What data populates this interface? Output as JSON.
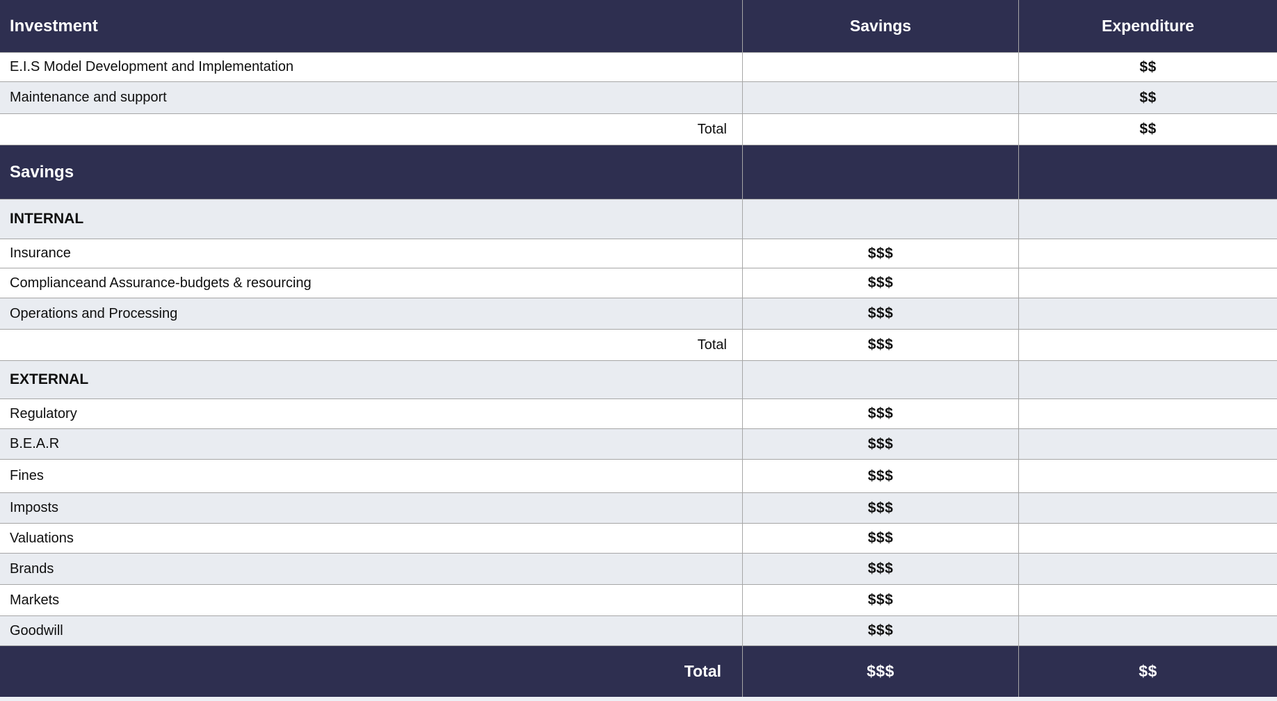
{
  "colors": {
    "dark_header_bg": "#2e2f50",
    "stripe_row_bg": "#e9ecf1",
    "row_border": "#a6a6a6",
    "bottom_strip_bg": "#edf0f5",
    "text": "#0f0f0f",
    "header_text": "#ffffff"
  },
  "table": {
    "columns": [
      {
        "label": "Investment"
      },
      {
        "label": "Savings"
      },
      {
        "label": "Expenditure"
      }
    ],
    "rows": [
      {
        "type": "data",
        "bg": "white",
        "label": "E.I.S Model Development and Implementation",
        "savings": "",
        "expenditure": "$$"
      },
      {
        "type": "data",
        "bg": "gray",
        "label": "Maintenance and support",
        "savings": "",
        "expenditure": "$$"
      },
      {
        "type": "total",
        "bg": "white",
        "label": "Total",
        "savings": "",
        "expenditure": "$$"
      },
      {
        "type": "section",
        "bg": "dark",
        "label": "Savings",
        "savings": "",
        "expenditure": ""
      },
      {
        "type": "subsection",
        "bg": "gray",
        "label": "INTERNAL",
        "savings": "",
        "expenditure": ""
      },
      {
        "type": "data",
        "bg": "white",
        "label": "Insurance",
        "savings": "$$$",
        "expenditure": ""
      },
      {
        "type": "data",
        "bg": "white",
        "label": "Complianceand Assurance-budgets & resourcing",
        "savings": "$$$",
        "expenditure": ""
      },
      {
        "type": "data",
        "bg": "gray",
        "label": "Operations and Processing",
        "savings": "$$$",
        "expenditure": ""
      },
      {
        "type": "total",
        "bg": "white",
        "label": "Total",
        "savings": "$$$",
        "expenditure": ""
      },
      {
        "type": "subsection",
        "bg": "gray",
        "label": "EXTERNAL",
        "savings": "",
        "expenditure": ""
      },
      {
        "type": "data",
        "bg": "white",
        "label": "Regulatory",
        "savings": "$$$",
        "expenditure": ""
      },
      {
        "type": "data",
        "bg": "gray",
        "label": "B.E.A.R",
        "savings": "$$$",
        "expenditure": ""
      },
      {
        "type": "data",
        "bg": "white",
        "label": "Fines",
        "savings": "$$$",
        "expenditure": ""
      },
      {
        "type": "data",
        "bg": "gray",
        "label": "Imposts",
        "savings": "$$$",
        "expenditure": ""
      },
      {
        "type": "data",
        "bg": "white",
        "label": "Valuations",
        "savings": "$$$",
        "expenditure": ""
      },
      {
        "type": "data",
        "bg": "gray",
        "label": "Brands",
        "savings": "$$$",
        "expenditure": ""
      },
      {
        "type": "data",
        "bg": "white",
        "label": "Markets",
        "savings": "$$$",
        "expenditure": ""
      },
      {
        "type": "data",
        "bg": "gray",
        "label": "Goodwill",
        "savings": "$$$",
        "expenditure": ""
      }
    ],
    "footer": {
      "label": "Total",
      "savings": "$$$",
      "expenditure": "$$"
    }
  }
}
